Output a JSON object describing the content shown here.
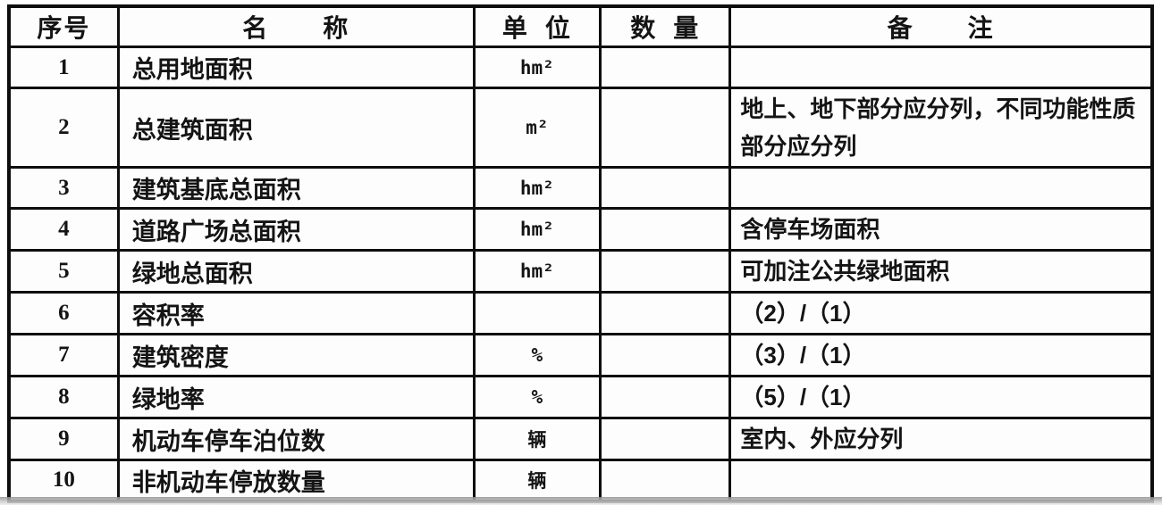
{
  "table": {
    "title_semantic": "main-technical-economic-indicators",
    "columns": {
      "no": "序号",
      "name": "名　　称",
      "unit": "单  位",
      "qty": "数  量",
      "remark": "备　　注"
    },
    "rows": [
      {
        "no": "1",
        "name": "总用地面积",
        "unit": "hm²",
        "qty": "",
        "remark": ""
      },
      {
        "no": "2",
        "name": "总建筑面积",
        "unit": "m²",
        "qty": "",
        "remark": "地上、地下部分应分列，不同功能性质部分应分列"
      },
      {
        "no": "3",
        "name": "建筑基底总面积",
        "unit": "hm²",
        "qty": "",
        "remark": ""
      },
      {
        "no": "4",
        "name": "道路广场总面积",
        "unit": "hm²",
        "qty": "",
        "remark": "含停车场面积"
      },
      {
        "no": "5",
        "name": "绿地总面积",
        "unit": "hm²",
        "qty": "",
        "remark": "可加注公共绿地面积"
      },
      {
        "no": "6",
        "name": "容积率",
        "unit": "",
        "qty": "",
        "remark": "（2）/（1）"
      },
      {
        "no": "7",
        "name": "建筑密度",
        "unit": "%",
        "qty": "",
        "remark": "（3）/（1）"
      },
      {
        "no": "8",
        "name": "绿地率",
        "unit": "%",
        "qty": "",
        "remark": "（5）/（1）"
      },
      {
        "no": "9",
        "name": "机动车停车泊位数",
        "unit": "辆",
        "qty": "",
        "remark": "室内、外应分列"
      },
      {
        "no": "10",
        "name": "非机动车停放数量",
        "unit": "辆",
        "qty": "",
        "remark": ""
      }
    ],
    "colors": {
      "border": "#0e0e0e",
      "cell_background": "#fdfdfd",
      "text": "#141414"
    }
  }
}
